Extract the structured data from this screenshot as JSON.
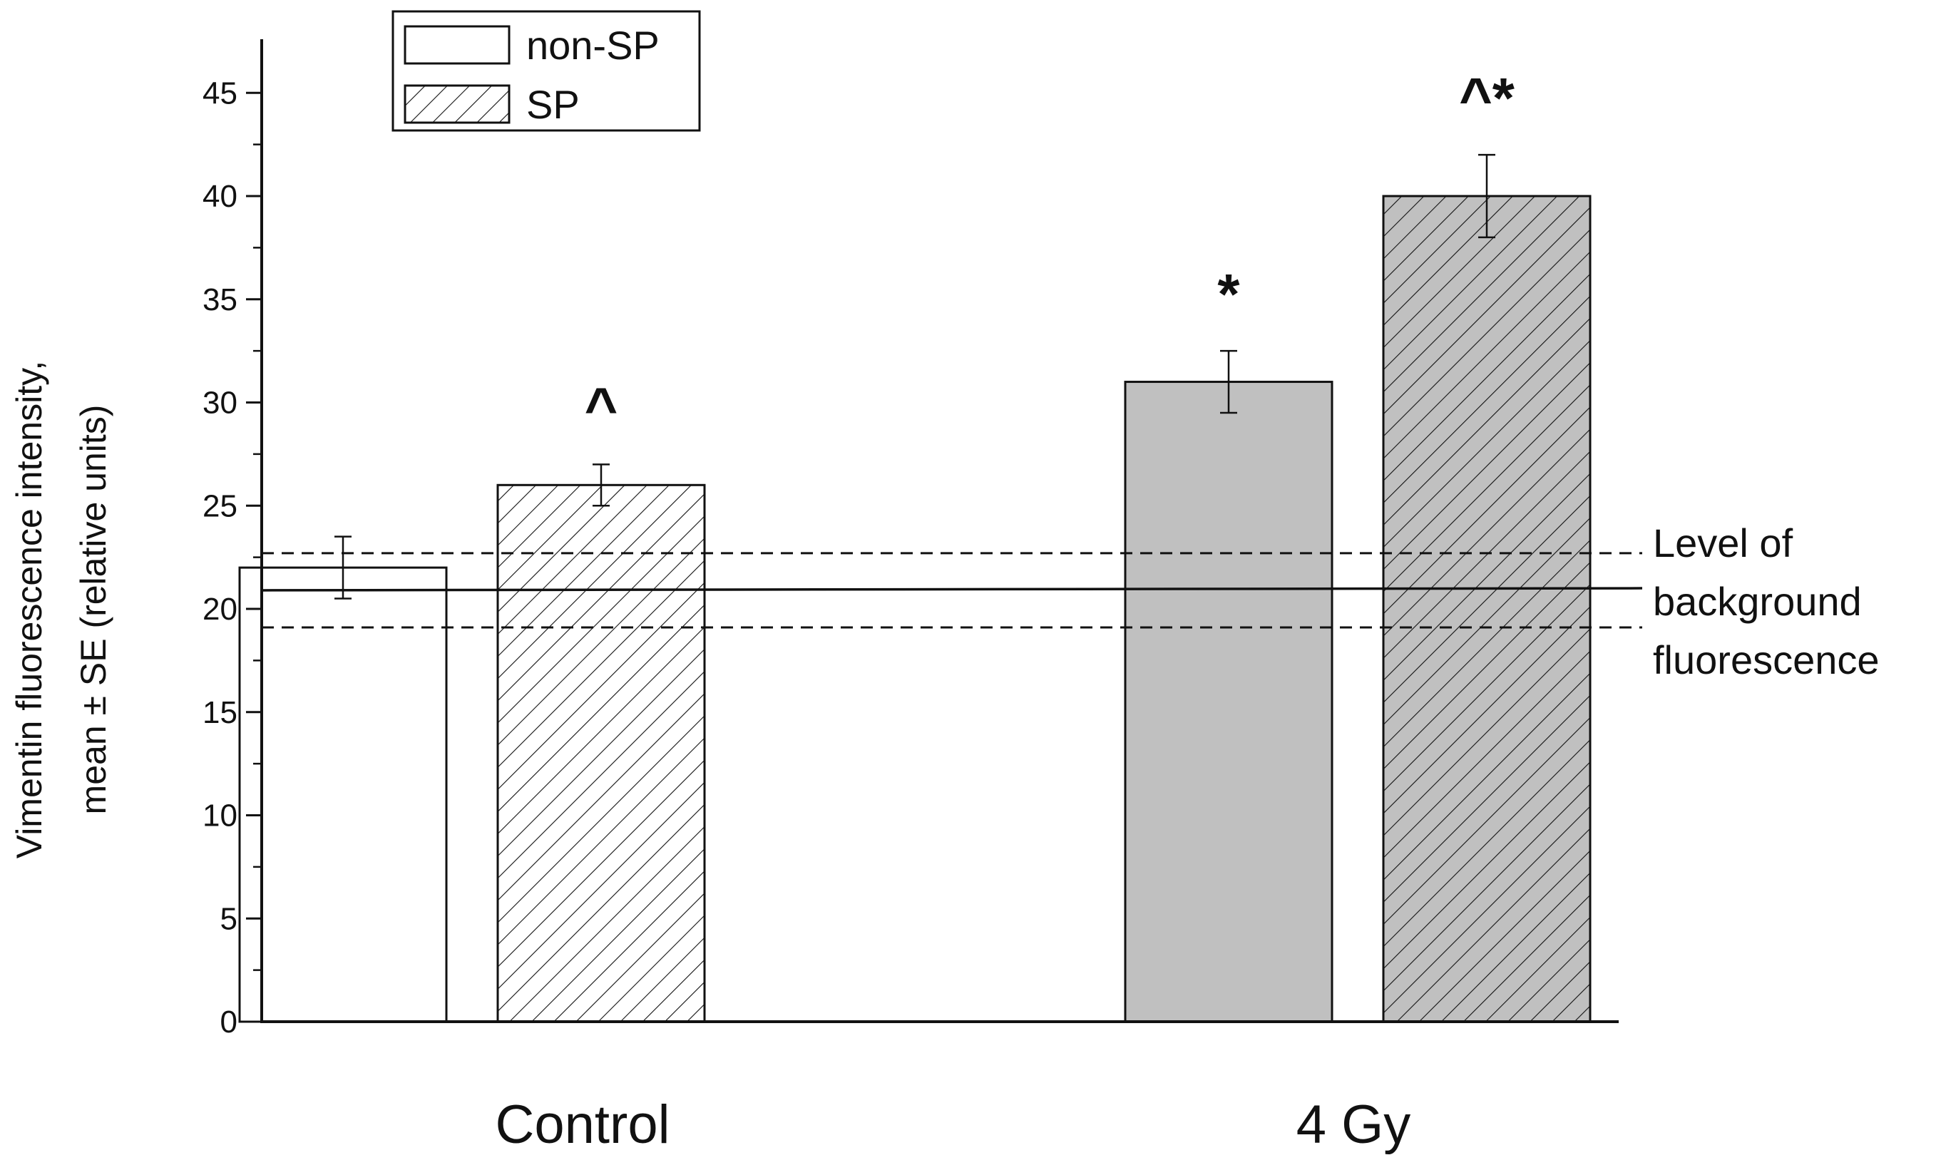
{
  "chart_data": {
    "type": "bar",
    "title": "",
    "xlabel": "",
    "ylabel_lines": [
      "Vimentin fluorescence intensity,",
      "mean ± SE (relative units)"
    ],
    "ylim": [
      0,
      47
    ],
    "yticks": [
      0,
      5,
      10,
      15,
      20,
      25,
      30,
      35,
      40,
      45
    ],
    "categories": [
      "Control",
      "4 Gy"
    ],
    "series": [
      {
        "name": "non-SP",
        "pattern": "none",
        "fills": [
          "#ffffff",
          "#c0c0c0"
        ],
        "values": [
          22,
          31
        ],
        "errors": [
          1.5,
          1.5
        ],
        "annotations": [
          "",
          "*"
        ]
      },
      {
        "name": "SP",
        "pattern": "hatch",
        "fills": [
          "#ffffff",
          "#c0c0c0"
        ],
        "values": [
          26,
          40
        ],
        "errors": [
          1.0,
          2.0
        ],
        "annotations": [
          "^",
          "^*"
        ]
      }
    ],
    "background": {
      "label_lines": [
        "Level of",
        "background",
        "fluorescence"
      ],
      "mean_start": 20.9,
      "mean_end": 21.0,
      "upper": 22.7,
      "lower": 19.1
    },
    "legend": {
      "placement": "top-left",
      "entries": [
        {
          "label": "non-SP",
          "pattern": "none"
        },
        {
          "label": "SP",
          "pattern": "hatch"
        }
      ]
    }
  },
  "colors": {
    "axis": "#111111",
    "gray_fill": "#c0c0c0",
    "white_fill": "#ffffff"
  }
}
